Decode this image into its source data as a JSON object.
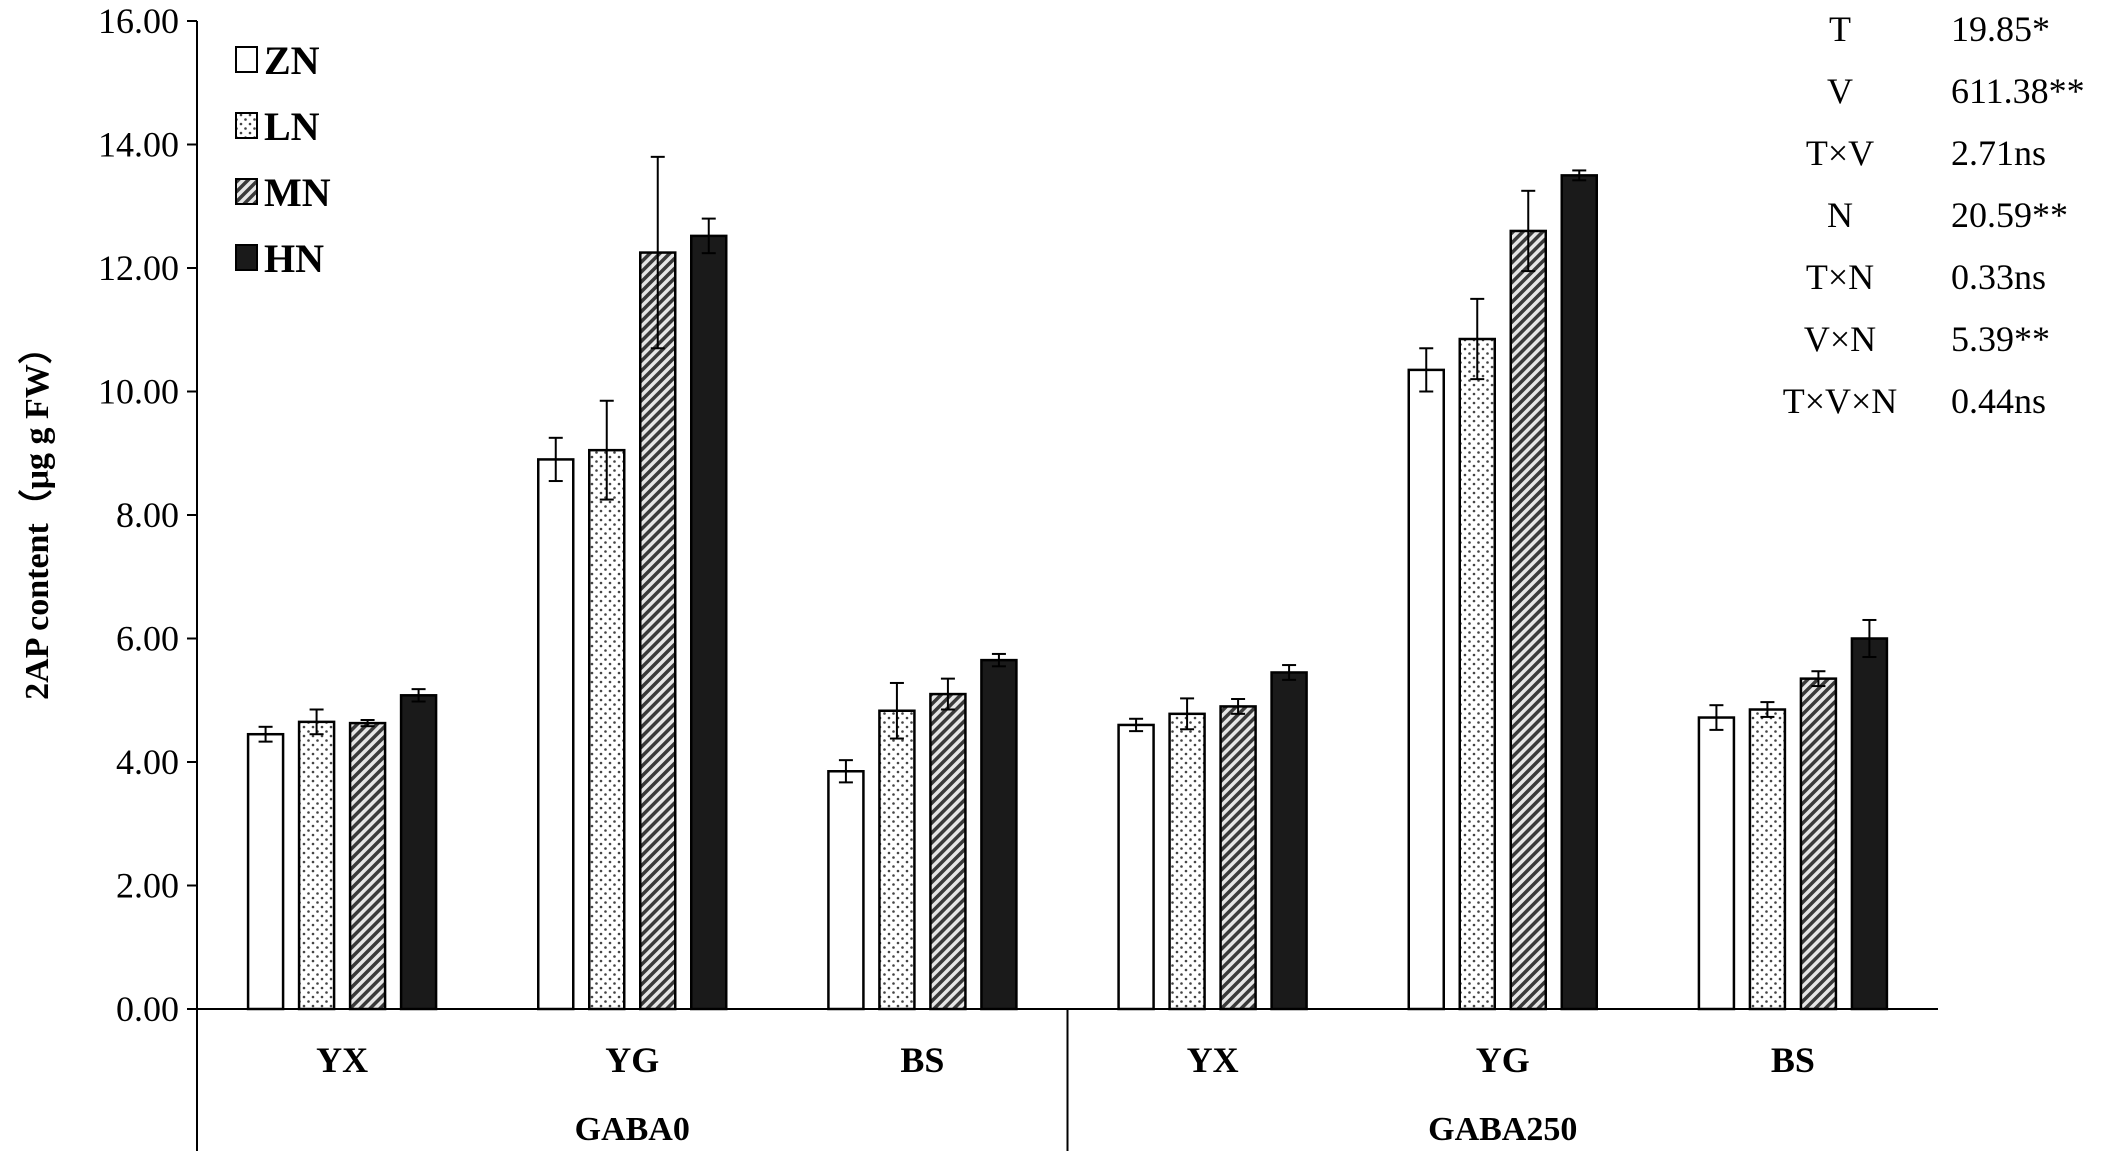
{
  "chart_data": {
    "type": "bar",
    "title": "",
    "ylabel": "2AP content（μg g FW）",
    "xlabel": "",
    "ylim": [
      0,
      16
    ],
    "yticks": [
      "0.00",
      "2.00",
      "4.00",
      "6.00",
      "8.00",
      "10.00",
      "12.00",
      "14.00",
      "16.00"
    ],
    "groups": [
      "GABA0",
      "GABA250"
    ],
    "categories": [
      "YX",
      "YG",
      "BS"
    ],
    "legend_position": "top-left",
    "series": [
      {
        "name": "ZN",
        "pattern": "white",
        "values": [
          [
            4.45,
            8.9,
            3.85
          ],
          [
            4.6,
            10.35,
            4.72
          ]
        ],
        "errors": [
          [
            0.12,
            0.35,
            0.18
          ],
          [
            0.1,
            0.35,
            0.2
          ]
        ]
      },
      {
        "name": "LN",
        "pattern": "dots",
        "values": [
          [
            4.65,
            9.05,
            4.83
          ],
          [
            4.78,
            10.85,
            4.85
          ]
        ],
        "errors": [
          [
            0.2,
            0.8,
            0.45
          ],
          [
            0.25,
            0.65,
            0.12
          ]
        ]
      },
      {
        "name": "MN",
        "pattern": "diagonal",
        "values": [
          [
            4.63,
            12.25,
            5.1
          ],
          [
            4.9,
            12.6,
            5.35
          ]
        ],
        "errors": [
          [
            0.05,
            1.55,
            0.25
          ],
          [
            0.12,
            0.65,
            0.12
          ]
        ]
      },
      {
        "name": "HN",
        "pattern": "black",
        "values": [
          [
            5.08,
            12.52,
            5.65
          ],
          [
            5.45,
            13.5,
            6.0
          ]
        ],
        "errors": [
          [
            0.1,
            0.28,
            0.1
          ],
          [
            0.12,
            0.08,
            0.3
          ]
        ]
      }
    ],
    "colors": {
      "bar_stroke": "#000000",
      "black_fill": "#1a1a1a",
      "white_fill": "#ffffff"
    }
  },
  "stats": [
    {
      "term": "T",
      "value": "19.85*"
    },
    {
      "term": "V",
      "value": "611.38**"
    },
    {
      "term": "T×V",
      "value": "2.71ns"
    },
    {
      "term": "N",
      "value": "20.59**"
    },
    {
      "term": "T×N",
      "value": "0.33ns"
    },
    {
      "term": "V×N",
      "value": "5.39**"
    },
    {
      "term": "T×V×N",
      "value": "0.44ns"
    }
  ]
}
